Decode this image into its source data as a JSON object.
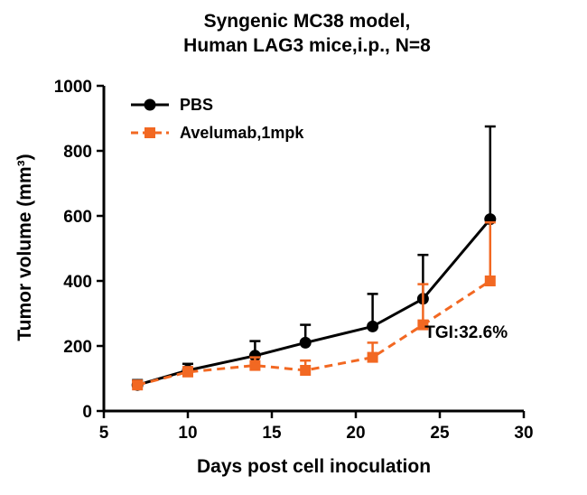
{
  "title": {
    "line1": "Syngenic MC38 model,",
    "line2": "Human LAG3 mice,i.p., N=8"
  },
  "axes": {
    "x_label": "Days post cell inoculation",
    "y_label": "Tumor volume (mm³)"
  },
  "legend": [
    {
      "label": "PBS",
      "color": "#000000",
      "marker": "circle",
      "line": "solid"
    },
    {
      "label": "Avelumab,1mpk",
      "color": "#F26822",
      "marker": "square",
      "line": "dashed"
    }
  ],
  "annotation": {
    "tgi_label": "TGI:32.6%"
  },
  "chart_data": {
    "type": "line",
    "title": "Syngenic MC38 model, Human LAG3 mice,i.p., N=8",
    "xlabel": "Days post cell inoculation",
    "ylabel": "Tumor volume (mm³)",
    "x": [
      7,
      10,
      14,
      17,
      21,
      24,
      28
    ],
    "series": [
      {
        "name": "PBS",
        "color": "#000000",
        "marker": "circle",
        "line": "solid",
        "values": [
          80,
          125,
          170,
          210,
          260,
          345,
          590
        ],
        "err_up": [
          15,
          20,
          45,
          55,
          100,
          135,
          285
        ]
      },
      {
        "name": "Avelumab,1mpk",
        "color": "#F26822",
        "marker": "square",
        "line": "dashed",
        "values": [
          80,
          120,
          140,
          125,
          165,
          265,
          400
        ],
        "err_up": [
          10,
          15,
          25,
          30,
          45,
          125,
          180
        ]
      }
    ],
    "xlim": [
      5,
      30
    ],
    "ylim": [
      0,
      1000
    ],
    "x_ticks": [
      5,
      10,
      15,
      20,
      25,
      30
    ],
    "y_ticks": [
      0,
      200,
      400,
      600,
      800,
      1000
    ],
    "grid": false,
    "legend_position": "upper-left-inside",
    "annotations": [
      {
        "text": "TGI:32.6%",
        "x": 24.1,
        "y": 225
      }
    ]
  }
}
